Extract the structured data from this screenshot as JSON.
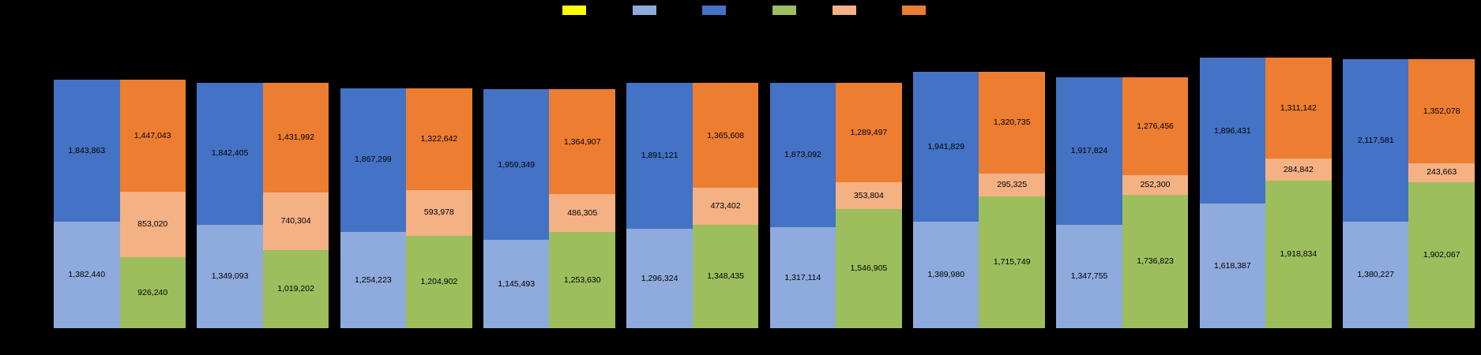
{
  "app": {
    "background_color": "#000000",
    "title": ""
  },
  "legend": {
    "position": "top",
    "items": [
      {
        "name": "series-yellow",
        "label": "",
        "color": "#FFFF00"
      },
      {
        "name": "series-light-blue",
        "label": "",
        "color": "#8FAADC"
      },
      {
        "name": "series-dark-blue",
        "label": "",
        "color": "#4472C4"
      },
      {
        "name": "series-green",
        "label": "",
        "color": "#9CBE5D"
      },
      {
        "name": "series-peach",
        "label": "",
        "color": "#F4B183"
      },
      {
        "name": "series-orange",
        "label": "",
        "color": "#ED7D31"
      }
    ]
  },
  "chart_data": {
    "type": "bar",
    "subtype": "paired-stacked-columns",
    "title": "",
    "xlabel": "",
    "ylabel": "",
    "ylim": [
      0,
      4000000
    ],
    "grid": false,
    "legend_position": "top",
    "num_groups": 10,
    "categories": [
      "",
      "",
      "",
      "",
      "",
      "",
      "",
      "",
      "",
      ""
    ],
    "series": [
      {
        "name": "light-blue",
        "legend_label": "",
        "color": "#8FAADC",
        "bar": "left",
        "stack_order": 0,
        "values": [
          1382440,
          1349093,
          1254223,
          1145493,
          1296324,
          1317114,
          1389980,
          1347755,
          1618387,
          1380227
        ]
      },
      {
        "name": "dark-blue",
        "legend_label": "",
        "color": "#4472C4",
        "bar": "left",
        "stack_order": 1,
        "values": [
          1843863,
          1842405,
          1867299,
          1959349,
          1891121,
          1873092,
          1941829,
          1917824,
          1896431,
          2117581
        ]
      },
      {
        "name": "green",
        "legend_label": "",
        "color": "#9CBE5D",
        "bar": "right",
        "stack_order": 0,
        "values": [
          926240,
          1019202,
          1204902,
          1253630,
          1348435,
          1546905,
          1715749,
          1736823,
          1918834,
          1902067
        ]
      },
      {
        "name": "peach",
        "legend_label": "",
        "color": "#F4B183",
        "bar": "right",
        "stack_order": 1,
        "values": [
          853020,
          740304,
          593978,
          486305,
          473402,
          353804,
          295325,
          252300,
          284842,
          243663
        ]
      },
      {
        "name": "orange",
        "legend_label": "",
        "color": "#ED7D31",
        "bar": "right",
        "stack_order": 2,
        "values": [
          1447043,
          1431992,
          1322642,
          1364907,
          1365608,
          1289497,
          1320735,
          1276456,
          1311142,
          1352078
        ]
      },
      {
        "name": "yellow",
        "legend_label": "",
        "color": "#FFFF00",
        "bar": "none",
        "stack_order": 0,
        "values": []
      }
    ],
    "data_labels": {
      "visible": true,
      "format": "#,##0",
      "color": "#000000"
    }
  }
}
